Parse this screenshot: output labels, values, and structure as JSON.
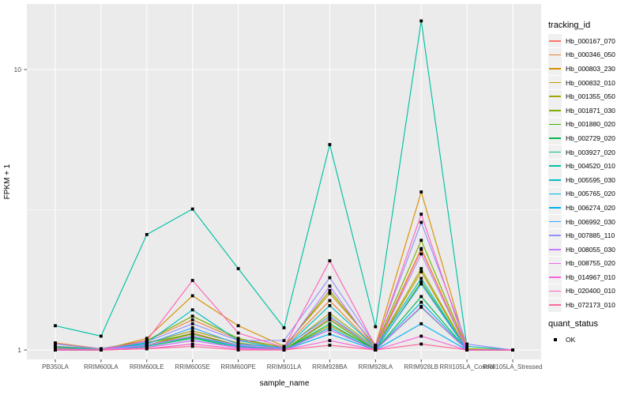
{
  "chart_data": {
    "type": "line",
    "title": "",
    "xlabel": "sample_name",
    "ylabel": "FPKM + 1",
    "x_categories": [
      "PB350LA",
      "RRIM600LA",
      "RRIM600LE",
      "RRIM600SE",
      "RRIM600PE",
      "RRIM901LA",
      "RRIM928BA",
      "RRIM928LA",
      "RRIM928LB",
      "RRII105LA_Control",
      "RRII105LA_Stressed"
    ],
    "y_scale": "log10",
    "y_ticks": [
      1,
      10
    ],
    "y_minor_ticks": [
      3.162
    ],
    "ylim": [
      0.93,
      17.1
    ],
    "grid": "on",
    "legend_position": "right",
    "legend_title": "tracking_id",
    "point_marker": "black-square",
    "panel_bg": "#EBEBEB",
    "grid_color": "#FFFFFF",
    "tick_label_color": "#4D4D4D",
    "axis_title_color": "#000000",
    "tick_mark_color": "#333333",
    "series": [
      {
        "name": "Hb_000167_070",
        "color": "#F8766D",
        "values": [
          1.01,
          1.0,
          1.04,
          1.15,
          1.04,
          1.0,
          1.3,
          1.01,
          2.28,
          1.0,
          1.0
        ]
      },
      {
        "name": "Hb_000346_050",
        "color": "#EA8331",
        "values": [
          1.06,
          1.01,
          1.08,
          1.28,
          1.09,
          1.02,
          1.5,
          1.02,
          2.3,
          1.0,
          1.0
        ]
      },
      {
        "name": "Hb_000803_230",
        "color": "#D89000",
        "values": [
          1.02,
          1.0,
          1.1,
          1.56,
          1.22,
          1.03,
          1.59,
          1.04,
          3.66,
          1.01,
          1.0
        ]
      },
      {
        "name": "Hb_000832_010",
        "color": "#C09B00",
        "values": [
          1.0,
          1.0,
          1.04,
          1.14,
          1.04,
          1.0,
          1.22,
          1.01,
          1.9,
          1.0,
          1.0
        ]
      },
      {
        "name": "Hb_001355_050",
        "color": "#A3A500",
        "values": [
          1.03,
          1.01,
          1.06,
          1.17,
          1.06,
          1.01,
          1.35,
          1.02,
          1.95,
          1.0,
          1.0
        ]
      },
      {
        "name": "Hb_001871_030",
        "color": "#7CAE00",
        "values": [
          1.03,
          1.01,
          1.08,
          1.32,
          1.1,
          1.02,
          1.63,
          1.03,
          2.46,
          1.01,
          1.0
        ]
      },
      {
        "name": "Hb_001880_020",
        "color": "#39B600",
        "values": [
          1.02,
          1.0,
          1.06,
          1.14,
          1.04,
          1.0,
          1.28,
          1.0,
          1.75,
          1.0,
          1.0
        ]
      },
      {
        "name": "Hb_002729_020",
        "color": "#00BB4E",
        "values": [
          1.0,
          1.0,
          1.04,
          1.11,
          1.03,
          1.0,
          1.24,
          1.0,
          1.55,
          1.0,
          1.0
        ]
      },
      {
        "name": "Hb_003927_020",
        "color": "#00BF7D",
        "values": [
          1.0,
          1.0,
          1.03,
          1.1,
          1.02,
          1.0,
          1.18,
          1.0,
          1.42,
          1.0,
          1.0
        ]
      },
      {
        "name": "Hb_004520_010",
        "color": "#00C1A3",
        "values": [
          1.22,
          1.12,
          2.58,
          3.18,
          1.95,
          1.2,
          5.4,
          1.21,
          14.9,
          1.03,
          1.0
        ]
      },
      {
        "name": "Hb_005595_030",
        "color": "#00BFC4",
        "values": [
          1.0,
          1.0,
          1.06,
          1.39,
          1.08,
          1.01,
          1.44,
          1.02,
          1.8,
          1.0,
          1.0
        ]
      },
      {
        "name": "Hb_005765_020",
        "color": "#00BAE0",
        "values": [
          1.0,
          1.0,
          1.04,
          1.12,
          1.03,
          1.0,
          1.2,
          1.0,
          1.48,
          1.0,
          1.0
        ]
      },
      {
        "name": "Hb_006274_020",
        "color": "#00B0F6",
        "values": [
          1.0,
          1.0,
          1.02,
          1.08,
          1.02,
          1.0,
          1.14,
          1.0,
          1.24,
          1.0,
          1.0
        ]
      },
      {
        "name": "Hb_006992_030",
        "color": "#35A2FF",
        "values": [
          1.03,
          1.0,
          1.05,
          1.2,
          1.05,
          1.02,
          1.32,
          1.01,
          1.72,
          1.0,
          1.0
        ]
      },
      {
        "name": "Hb_007885_110",
        "color": "#9590FF",
        "values": [
          1.05,
          1.01,
          1.07,
          1.24,
          1.08,
          1.08,
          1.81,
          1.04,
          2.85,
          1.05,
          1.0
        ]
      },
      {
        "name": "Hb_008055_030",
        "color": "#C77CFF",
        "values": [
          1.01,
          1.0,
          1.04,
          1.12,
          1.04,
          1.01,
          1.69,
          1.01,
          2.2,
          1.0,
          1.0
        ]
      },
      {
        "name": "Hb_008755_020",
        "color": "#E76BF3",
        "values": [
          1.0,
          1.0,
          1.02,
          1.08,
          1.02,
          1.0,
          1.18,
          1.0,
          1.43,
          1.0,
          1.0
        ]
      },
      {
        "name": "Hb_014967_010",
        "color": "#FA62DB",
        "values": [
          1.0,
          1.0,
          1.01,
          1.05,
          1.01,
          1.0,
          1.08,
          1.0,
          1.12,
          1.0,
          1.0
        ]
      },
      {
        "name": "Hb_020400_010",
        "color": "#FF62BC",
        "values": [
          1.0,
          1.0,
          1.08,
          1.77,
          1.15,
          1.02,
          2.08,
          1.03,
          3.05,
          1.0,
          1.0
        ]
      },
      {
        "name": "Hb_072173_010",
        "color": "#FF6A98",
        "values": [
          1.0,
          1.0,
          1.01,
          1.03,
          1.0,
          1.0,
          1.04,
          1.0,
          1.05,
          1.0,
          1.0
        ]
      }
    ],
    "quant_status": {
      "title": "quant_status",
      "items": [
        {
          "label": "OK",
          "marker": "black-square"
        }
      ]
    }
  }
}
